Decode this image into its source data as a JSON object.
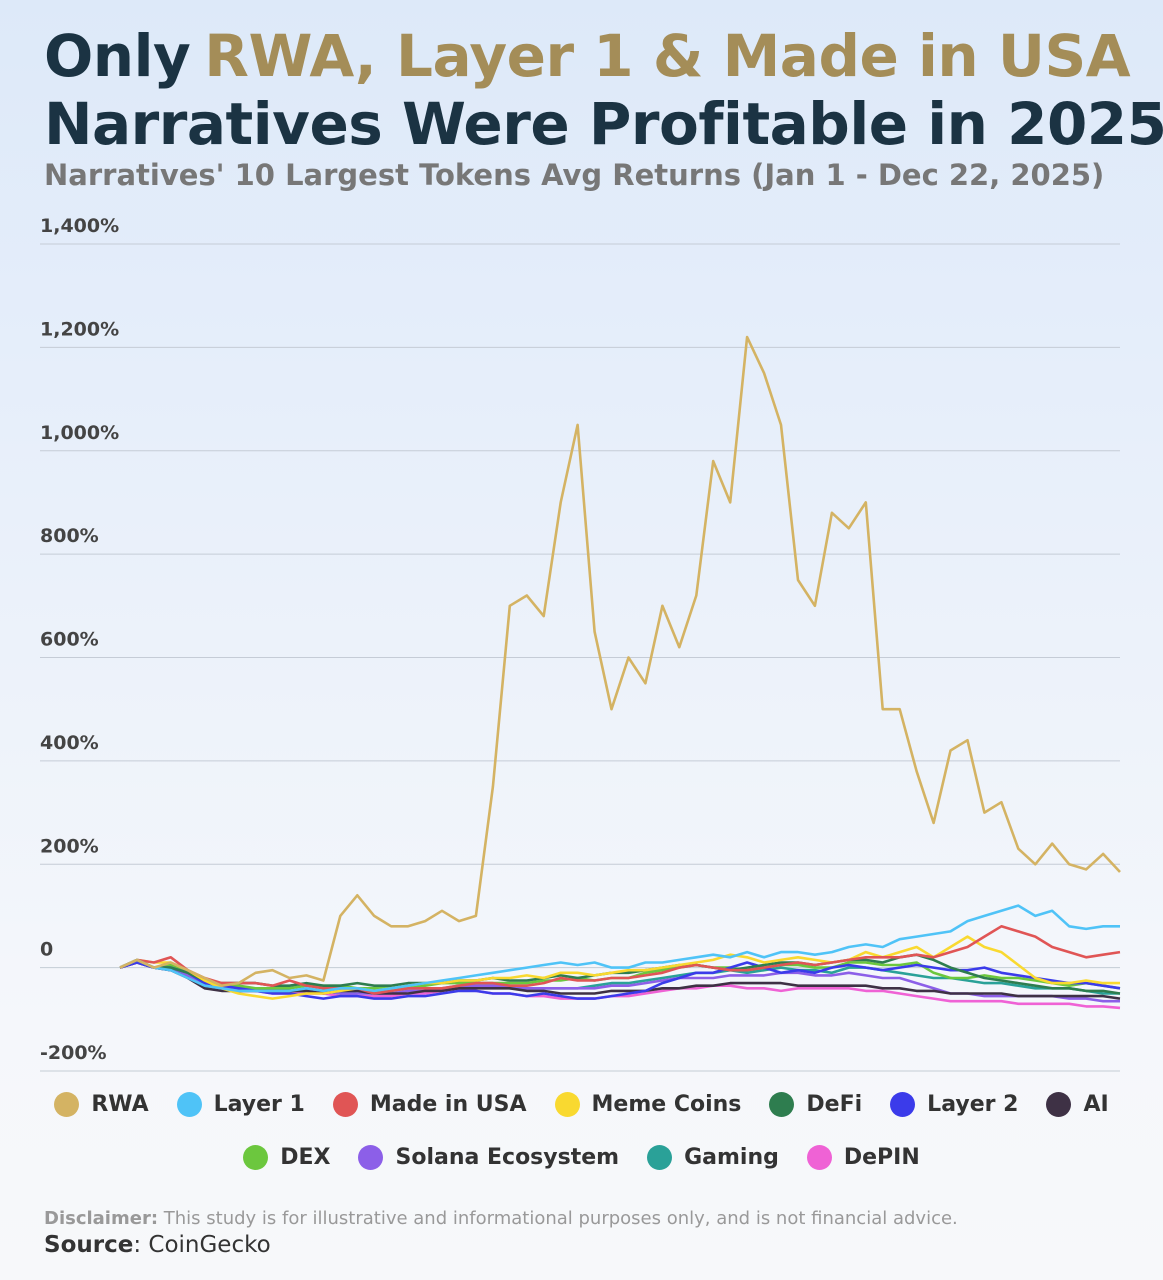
{
  "chart_data": {
    "type": "line",
    "title": {
      "lead": "Only",
      "highlight": "RWA, Layer 1 & Made in USA",
      "line2": "Narratives Were Profitable in 2025"
    },
    "subtitle": "Narratives' 10 Largest Tokens Avg Returns (Jan 1 - Dec 22, 2025)",
    "categories": [
      null,
      null,
      null,
      null,
      null,
      null,
      null,
      null,
      null,
      null,
      null,
      null,
      null,
      null,
      null,
      null,
      null,
      null,
      null,
      null,
      null,
      null,
      null,
      null,
      null,
      null,
      null,
      null,
      null,
      null,
      null,
      null,
      null,
      null,
      null,
      null,
      null,
      null,
      null,
      null,
      null,
      null,
      null,
      null,
      null,
      null,
      null,
      null,
      null,
      null,
      null,
      null,
      null,
      null,
      null,
      null,
      null,
      null,
      null,
      null
    ],
    "ylim": [
      -200,
      1400
    ],
    "yticks": [
      {
        "value": -200,
        "label": "-200%"
      },
      0,
      {
        "value": 200,
        "label": "200%"
      },
      {
        "value": 400,
        "label": "400%"
      },
      {
        "value": 600,
        "label": "600%"
      },
      {
        "value": 800,
        "label": "800%"
      },
      {
        "value": 1000,
        "label": "1,000%"
      },
      {
        "value": 1200,
        "label": "1,200%"
      },
      {
        "value": 1400,
        "label": "1,400%"
      }
    ],
    "grid": true,
    "series": [
      {
        "name": "RWA",
        "color": "#d4b363",
        "values": [
          0,
          15,
          0,
          10,
          -5,
          -20,
          -35,
          -30,
          -10,
          -5,
          -20,
          -15,
          -25,
          100,
          140,
          100,
          80,
          80,
          90,
          110,
          90,
          100,
          350,
          700,
          720,
          680,
          900,
          1050,
          650,
          500,
          600,
          550,
          700,
          620,
          720,
          980,
          900,
          1220,
          1150,
          1050,
          750,
          700,
          880,
          850,
          900,
          500,
          500,
          380,
          280,
          420,
          440,
          300,
          320,
          230,
          200,
          240,
          200,
          190,
          220,
          185
        ]
      },
      {
        "name": "Layer 1",
        "color": "#4fc3f7",
        "values": [
          0,
          15,
          0,
          -5,
          -20,
          -35,
          -40,
          -45,
          -45,
          -45,
          -45,
          -40,
          -45,
          -40,
          -40,
          -45,
          -40,
          -35,
          -30,
          -25,
          -20,
          -15,
          -10,
          -5,
          0,
          5,
          10,
          5,
          10,
          0,
          0,
          10,
          10,
          15,
          20,
          25,
          20,
          30,
          20,
          30,
          30,
          25,
          30,
          40,
          45,
          40,
          55,
          60,
          65,
          70,
          90,
          100,
          110,
          120,
          100,
          110,
          80,
          75,
          80,
          80
        ]
      },
      {
        "name": "Made in USA",
        "color": "#e05555",
        "values": [
          0,
          15,
          10,
          20,
          -5,
          -20,
          -30,
          -30,
          -30,
          -35,
          -25,
          -35,
          -40,
          -40,
          -40,
          -50,
          -45,
          -40,
          -40,
          -40,
          -35,
          -30,
          -30,
          -35,
          -35,
          -30,
          -20,
          -25,
          -25,
          -20,
          -20,
          -15,
          -10,
          0,
          5,
          0,
          -5,
          -5,
          0,
          5,
          10,
          5,
          10,
          15,
          20,
          20,
          20,
          25,
          20,
          30,
          40,
          60,
          80,
          70,
          60,
          40,
          30,
          20,
          25,
          30
        ]
      },
      {
        "name": "Meme Coins",
        "color": "#f9d930",
        "values": [
          0,
          15,
          10,
          10,
          -5,
          -25,
          -40,
          -50,
          -55,
          -60,
          -55,
          -50,
          -50,
          -45,
          -40,
          -45,
          -40,
          -35,
          -30,
          -30,
          -25,
          -25,
          -20,
          -20,
          -15,
          -20,
          -10,
          -10,
          -15,
          -10,
          -5,
          -5,
          0,
          5,
          10,
          15,
          25,
          20,
          10,
          15,
          20,
          15,
          10,
          15,
          30,
          20,
          30,
          40,
          20,
          40,
          60,
          40,
          30,
          5,
          -20,
          -30,
          -30,
          -25,
          -30,
          -30
        ]
      },
      {
        "name": "DeFi",
        "color": "#2e7d4f",
        "values": [
          0,
          15,
          0,
          0,
          -10,
          -25,
          -30,
          -30,
          -30,
          -35,
          -35,
          -30,
          -35,
          -35,
          -30,
          -35,
          -35,
          -30,
          -30,
          -30,
          -25,
          -25,
          -20,
          -25,
          -25,
          -20,
          -15,
          -20,
          -15,
          -10,
          -10,
          -5,
          0,
          5,
          5,
          0,
          -5,
          0,
          5,
          10,
          10,
          5,
          10,
          15,
          15,
          10,
          20,
          25,
          15,
          0,
          -10,
          -20,
          -25,
          -30,
          -35,
          -40,
          -40,
          -45,
          -45,
          -50
        ]
      },
      {
        "name": "Layer 2",
        "color": "#3b3bea",
        "values": [
          0,
          10,
          0,
          0,
          -10,
          -30,
          -35,
          -40,
          -45,
          -50,
          -50,
          -55,
          -60,
          -55,
          -55,
          -60,
          -60,
          -55,
          -55,
          -50,
          -45,
          -45,
          -50,
          -50,
          -55,
          -50,
          -55,
          -60,
          -60,
          -55,
          -50,
          -45,
          -30,
          -20,
          -10,
          -10,
          0,
          10,
          0,
          -10,
          -5,
          -10,
          0,
          5,
          0,
          -5,
          0,
          5,
          0,
          -5,
          -5,
          0,
          -10,
          -15,
          -20,
          -25,
          -30,
          -30,
          -35,
          -40
        ]
      },
      {
        "name": "AI",
        "color": "#3e3145",
        "values": [
          0,
          10,
          0,
          -5,
          -20,
          -40,
          -45,
          -45,
          -45,
          -45,
          -45,
          -45,
          -50,
          -45,
          -45,
          -50,
          -50,
          -50,
          -45,
          -45,
          -40,
          -40,
          -40,
          -40,
          -45,
          -45,
          -50,
          -50,
          -50,
          -45,
          -45,
          -45,
          -40,
          -40,
          -35,
          -35,
          -30,
          -30,
          -30,
          -30,
          -35,
          -35,
          -35,
          -35,
          -35,
          -40,
          -40,
          -45,
          -45,
          -50,
          -50,
          -50,
          -50,
          -55,
          -55,
          -55,
          -55,
          -55,
          -55,
          -60
        ]
      },
      {
        "name": "DEX",
        "color": "#6cc73e",
        "values": [
          0,
          15,
          0,
          5,
          -10,
          -30,
          -35,
          -35,
          -40,
          -40,
          -40,
          -35,
          -35,
          -35,
          -40,
          -40,
          -40,
          -35,
          -35,
          -30,
          -30,
          -30,
          -30,
          -30,
          -30,
          -25,
          -25,
          -20,
          -25,
          -20,
          -20,
          -10,
          -5,
          0,
          5,
          0,
          0,
          -5,
          0,
          5,
          5,
          0,
          0,
          10,
          10,
          5,
          5,
          10,
          -10,
          -20,
          -20,
          -15,
          -20,
          -20,
          -25,
          -30,
          -35,
          -30,
          -35,
          -40
        ]
      },
      {
        "name": "Solana Ecosystem",
        "color": "#8c5fe8",
        "values": [
          0,
          10,
          0,
          -5,
          -15,
          -35,
          -40,
          -40,
          -45,
          -45,
          -45,
          -45,
          -45,
          -50,
          -50,
          -50,
          -50,
          -45,
          -45,
          -40,
          -35,
          -35,
          -35,
          -35,
          -40,
          -40,
          -40,
          -40,
          -40,
          -35,
          -35,
          -30,
          -25,
          -20,
          -20,
          -20,
          -15,
          -15,
          -15,
          -10,
          -10,
          -15,
          -15,
          -10,
          -15,
          -20,
          -20,
          -30,
          -40,
          -50,
          -50,
          -55,
          -55,
          -55,
          -55,
          -55,
          -60,
          -60,
          -65,
          -65
        ]
      },
      {
        "name": "Gaming",
        "color": "#2aa198",
        "values": [
          0,
          15,
          0,
          -5,
          -10,
          -35,
          -40,
          -40,
          -40,
          -45,
          -45,
          -45,
          -45,
          -50,
          -45,
          -45,
          -45,
          -40,
          -40,
          -40,
          -40,
          -35,
          -35,
          -40,
          -40,
          -40,
          -40,
          -40,
          -35,
          -30,
          -30,
          -25,
          -20,
          -15,
          -10,
          -10,
          -5,
          -10,
          -5,
          0,
          -5,
          -5,
          -10,
          0,
          0,
          -5,
          -10,
          -15,
          -20,
          -20,
          -25,
          -30,
          -30,
          -35,
          -40,
          -40,
          -40,
          -45,
          -50,
          -50
        ]
      },
      {
        "name": "DePIN",
        "color": "#ef62d5",
        "values": [
          0,
          10,
          0,
          -5,
          -15,
          -35,
          -40,
          -45,
          -45,
          -50,
          -50,
          -50,
          -50,
          -55,
          -55,
          -55,
          -55,
          -50,
          -50,
          -45,
          -40,
          -45,
          -50,
          -50,
          -55,
          -55,
          -60,
          -60,
          -60,
          -55,
          -55,
          -50,
          -45,
          -40,
          -40,
          -35,
          -35,
          -40,
          -40,
          -45,
          -40,
          -40,
          -40,
          -40,
          -45,
          -45,
          -50,
          -55,
          -60,
          -65,
          -65,
          -65,
          -65,
          -70,
          -70,
          -70,
          -70,
          -75,
          -75,
          -78
        ]
      }
    ],
    "disclaimer": {
      "label": "Disclaimer:",
      "text": "This study is for illustrative and informational purposes only, and is not financial advice."
    },
    "source": {
      "label": "Source",
      "text": ": CoinGecko"
    }
  }
}
